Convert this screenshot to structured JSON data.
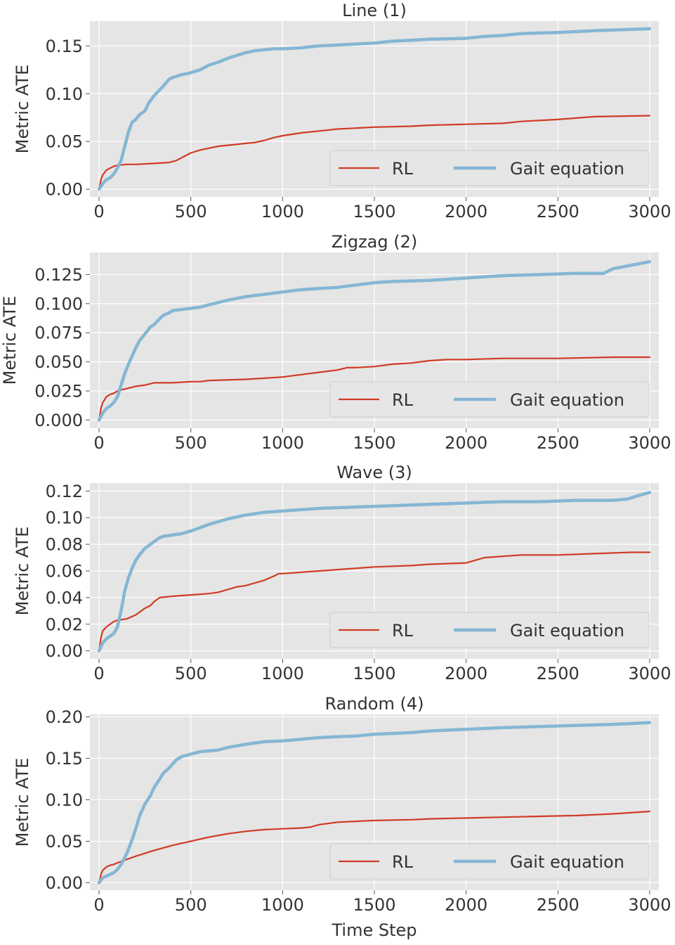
{
  "x_axis_label": "Time Step",
  "legend_labels": {
    "rl": "RL",
    "gait": "Gait equation"
  },
  "colors": {
    "rl": "#d03b24",
    "gait": "#85b6d4",
    "panel_bg": "#e5e5e5",
    "grid": "#ffffff",
    "text": "#333333"
  },
  "chart_data": [
    {
      "type": "line",
      "title": "Line (1)",
      "xlabel": "",
      "ylabel": "Metric ATE",
      "xlim": [
        -50,
        3050
      ],
      "ylim": [
        -0.008,
        0.176
      ],
      "xticks": [
        0,
        500,
        1000,
        1500,
        2000,
        2500,
        3000
      ],
      "xtick_labels": [
        "0",
        "500",
        "1000",
        "1500",
        "2000",
        "2500",
        "3000"
      ],
      "yticks": [
        0.0,
        0.05,
        0.1,
        0.15
      ],
      "ytick_labels": [
        "0.00",
        "0.05",
        "0.10",
        "0.15"
      ],
      "legend_position": "lower-right",
      "series": [
        {
          "name": "RL",
          "x": [
            0,
            10,
            20,
            40,
            60,
            80,
            100,
            150,
            200,
            300,
            380,
            420,
            460,
            500,
            550,
            600,
            650,
            700,
            750,
            800,
            850,
            900,
            950,
            1000,
            1100,
            1200,
            1300,
            1400,
            1500,
            1700,
            1800,
            2000,
            2200,
            2300,
            2500,
            2700,
            3000
          ],
          "y": [
            0.0,
            0.01,
            0.015,
            0.02,
            0.022,
            0.024,
            0.025,
            0.026,
            0.026,
            0.027,
            0.028,
            0.03,
            0.034,
            0.038,
            0.041,
            0.043,
            0.045,
            0.046,
            0.047,
            0.048,
            0.049,
            0.051,
            0.054,
            0.056,
            0.059,
            0.061,
            0.063,
            0.064,
            0.065,
            0.066,
            0.067,
            0.068,
            0.069,
            0.071,
            0.073,
            0.076,
            0.077
          ]
        },
        {
          "name": "Gait equation",
          "x": [
            0,
            10,
            20,
            40,
            60,
            80,
            100,
            120,
            140,
            160,
            180,
            200,
            220,
            250,
            270,
            300,
            330,
            350,
            380,
            400,
            420,
            450,
            480,
            500,
            550,
            600,
            650,
            700,
            750,
            800,
            850,
            900,
            950,
            1000,
            1100,
            1200,
            1300,
            1400,
            1500,
            1600,
            1700,
            1800,
            2000,
            2100,
            2200,
            2300,
            2500,
            2700,
            3000
          ],
          "y": [
            0.0,
            0.003,
            0.006,
            0.01,
            0.012,
            0.016,
            0.022,
            0.03,
            0.045,
            0.06,
            0.07,
            0.073,
            0.078,
            0.082,
            0.09,
            0.098,
            0.104,
            0.108,
            0.115,
            0.117,
            0.118,
            0.12,
            0.121,
            0.122,
            0.125,
            0.13,
            0.133,
            0.137,
            0.14,
            0.143,
            0.145,
            0.146,
            0.147,
            0.147,
            0.148,
            0.15,
            0.151,
            0.152,
            0.153,
            0.155,
            0.156,
            0.157,
            0.158,
            0.16,
            0.161,
            0.163,
            0.164,
            0.166,
            0.168
          ]
        }
      ]
    },
    {
      "type": "line",
      "title": "Zigzag (2)",
      "xlabel": "",
      "ylabel": "Metric ATE",
      "xlim": [
        -50,
        3050
      ],
      "ylim": [
        -0.007,
        0.144
      ],
      "xticks": [
        0,
        500,
        1000,
        1500,
        2000,
        2500,
        3000
      ],
      "xtick_labels": [
        "0",
        "500",
        "1000",
        "1500",
        "2000",
        "2500",
        "3000"
      ],
      "yticks": [
        0.0,
        0.025,
        0.05,
        0.075,
        0.1,
        0.125
      ],
      "ytick_labels": [
        "0.000",
        "0.025",
        "0.050",
        "0.075",
        "0.100",
        "0.125"
      ],
      "legend_position": "lower-right",
      "series": [
        {
          "name": "RL",
          "x": [
            0,
            10,
            20,
            40,
            60,
            80,
            100,
            150,
            200,
            250,
            300,
            400,
            500,
            550,
            600,
            800,
            1000,
            1100,
            1200,
            1300,
            1350,
            1400,
            1500,
            1600,
            1700,
            1800,
            1900,
            2000,
            2200,
            2500,
            2800,
            3000
          ],
          "y": [
            0.0,
            0.01,
            0.015,
            0.02,
            0.022,
            0.023,
            0.025,
            0.027,
            0.029,
            0.03,
            0.032,
            0.032,
            0.033,
            0.033,
            0.034,
            0.035,
            0.037,
            0.039,
            0.041,
            0.043,
            0.045,
            0.045,
            0.046,
            0.048,
            0.049,
            0.051,
            0.052,
            0.052,
            0.053,
            0.053,
            0.054,
            0.054
          ]
        },
        {
          "name": "Gait equation",
          "x": [
            0,
            10,
            20,
            40,
            60,
            80,
            100,
            120,
            140,
            160,
            180,
            200,
            220,
            250,
            280,
            300,
            330,
            350,
            380,
            400,
            450,
            500,
            550,
            600,
            650,
            700,
            800,
            900,
            1000,
            1100,
            1200,
            1300,
            1400,
            1500,
            1600,
            1800,
            1900,
            2000,
            2100,
            2200,
            2400,
            2600,
            2700,
            2750,
            2800,
            2900,
            3000
          ],
          "y": [
            0.0,
            0.003,
            0.006,
            0.01,
            0.012,
            0.015,
            0.02,
            0.03,
            0.04,
            0.048,
            0.055,
            0.062,
            0.068,
            0.074,
            0.08,
            0.082,
            0.087,
            0.09,
            0.092,
            0.094,
            0.095,
            0.096,
            0.097,
            0.099,
            0.101,
            0.103,
            0.106,
            0.108,
            0.11,
            0.112,
            0.113,
            0.114,
            0.116,
            0.118,
            0.119,
            0.12,
            0.121,
            0.122,
            0.123,
            0.124,
            0.125,
            0.126,
            0.126,
            0.126,
            0.13,
            0.133,
            0.136
          ]
        }
      ]
    },
    {
      "type": "line",
      "title": "Wave (3)",
      "xlabel": "",
      "ylabel": "Metric ATE",
      "xlim": [
        -50,
        3050
      ],
      "ylim": [
        -0.006,
        0.126
      ],
      "xticks": [
        0,
        500,
        1000,
        1500,
        2000,
        2500,
        3000
      ],
      "xtick_labels": [
        "0",
        "500",
        "1000",
        "1500",
        "2000",
        "2500",
        "3000"
      ],
      "yticks": [
        0.0,
        0.02,
        0.04,
        0.06,
        0.08,
        0.1,
        0.12
      ],
      "ytick_labels": [
        "0.00",
        "0.02",
        "0.04",
        "0.06",
        "0.08",
        "0.10",
        "0.12"
      ],
      "legend_position": "lower-right",
      "series": [
        {
          "name": "RL",
          "x": [
            0,
            10,
            20,
            40,
            60,
            80,
            100,
            150,
            200,
            250,
            280,
            300,
            330,
            400,
            500,
            600,
            650,
            700,
            750,
            800,
            850,
            900,
            950,
            980,
            1000,
            1100,
            1200,
            1300,
            1400,
            1500,
            1700,
            1800,
            2000,
            2050,
            2100,
            2200,
            2300,
            2500,
            2700,
            2900,
            3000
          ],
          "y": [
            0.0,
            0.01,
            0.015,
            0.018,
            0.02,
            0.022,
            0.023,
            0.024,
            0.027,
            0.032,
            0.034,
            0.037,
            0.04,
            0.041,
            0.042,
            0.043,
            0.044,
            0.046,
            0.048,
            0.049,
            0.051,
            0.053,
            0.056,
            0.058,
            0.058,
            0.059,
            0.06,
            0.061,
            0.062,
            0.063,
            0.064,
            0.065,
            0.066,
            0.068,
            0.07,
            0.071,
            0.072,
            0.072,
            0.073,
            0.074,
            0.074
          ]
        },
        {
          "name": "Gait equation",
          "x": [
            0,
            10,
            20,
            40,
            60,
            80,
            100,
            120,
            140,
            160,
            180,
            200,
            220,
            250,
            280,
            300,
            330,
            350,
            400,
            450,
            500,
            600,
            700,
            800,
            900,
            1000,
            1100,
            1200,
            1400,
            1600,
            1800,
            2000,
            2200,
            2400,
            2600,
            2800,
            2880,
            2950,
            3000
          ],
          "y": [
            0.0,
            0.003,
            0.006,
            0.009,
            0.011,
            0.013,
            0.018,
            0.03,
            0.045,
            0.055,
            0.062,
            0.068,
            0.072,
            0.077,
            0.08,
            0.082,
            0.085,
            0.086,
            0.087,
            0.088,
            0.09,
            0.095,
            0.099,
            0.102,
            0.104,
            0.105,
            0.106,
            0.107,
            0.108,
            0.109,
            0.11,
            0.111,
            0.112,
            0.112,
            0.113,
            0.113,
            0.114,
            0.117,
            0.119
          ]
        }
      ]
    },
    {
      "type": "line",
      "title": "Random (4)",
      "xlabel": "Time Step",
      "ylabel": "Metric ATE",
      "xlim": [
        -50,
        3050
      ],
      "ylim": [
        -0.009,
        0.203
      ],
      "xticks": [
        0,
        500,
        1000,
        1500,
        2000,
        2500,
        3000
      ],
      "xtick_labels": [
        "0",
        "500",
        "1000",
        "1500",
        "2000",
        "2500",
        "3000"
      ],
      "yticks": [
        0.0,
        0.05,
        0.1,
        0.15,
        0.2
      ],
      "ytick_labels": [
        "0.00",
        "0.05",
        "0.10",
        "0.15",
        "0.20"
      ],
      "legend_position": "lower-right",
      "series": [
        {
          "name": "RL",
          "x": [
            0,
            10,
            20,
            40,
            60,
            80,
            100,
            150,
            200,
            300,
            400,
            500,
            600,
            700,
            800,
            900,
            1000,
            1100,
            1150,
            1200,
            1300,
            1400,
            1500,
            1700,
            1800,
            2000,
            2200,
            2400,
            2600,
            2800,
            3000
          ],
          "y": [
            0.0,
            0.01,
            0.015,
            0.019,
            0.021,
            0.022,
            0.024,
            0.028,
            0.032,
            0.039,
            0.045,
            0.05,
            0.055,
            0.059,
            0.062,
            0.064,
            0.065,
            0.066,
            0.067,
            0.07,
            0.073,
            0.074,
            0.075,
            0.076,
            0.077,
            0.078,
            0.079,
            0.08,
            0.081,
            0.083,
            0.086
          ]
        },
        {
          "name": "Gait equation",
          "x": [
            0,
            10,
            20,
            40,
            60,
            80,
            100,
            120,
            140,
            160,
            180,
            200,
            220,
            250,
            280,
            300,
            330,
            350,
            380,
            400,
            420,
            450,
            500,
            550,
            600,
            650,
            700,
            750,
            800,
            900,
            1000,
            1100,
            1200,
            1300,
            1400,
            1500,
            1600,
            1700,
            1800,
            2000,
            2200,
            2500,
            2800,
            3000
          ],
          "y": [
            0.0,
            0.003,
            0.006,
            0.008,
            0.01,
            0.012,
            0.016,
            0.022,
            0.03,
            0.04,
            0.052,
            0.065,
            0.08,
            0.095,
            0.105,
            0.115,
            0.125,
            0.132,
            0.138,
            0.143,
            0.148,
            0.152,
            0.155,
            0.158,
            0.159,
            0.16,
            0.163,
            0.165,
            0.167,
            0.17,
            0.171,
            0.173,
            0.175,
            0.176,
            0.177,
            0.179,
            0.18,
            0.181,
            0.183,
            0.185,
            0.187,
            0.189,
            0.191,
            0.193
          ]
        }
      ]
    }
  ]
}
